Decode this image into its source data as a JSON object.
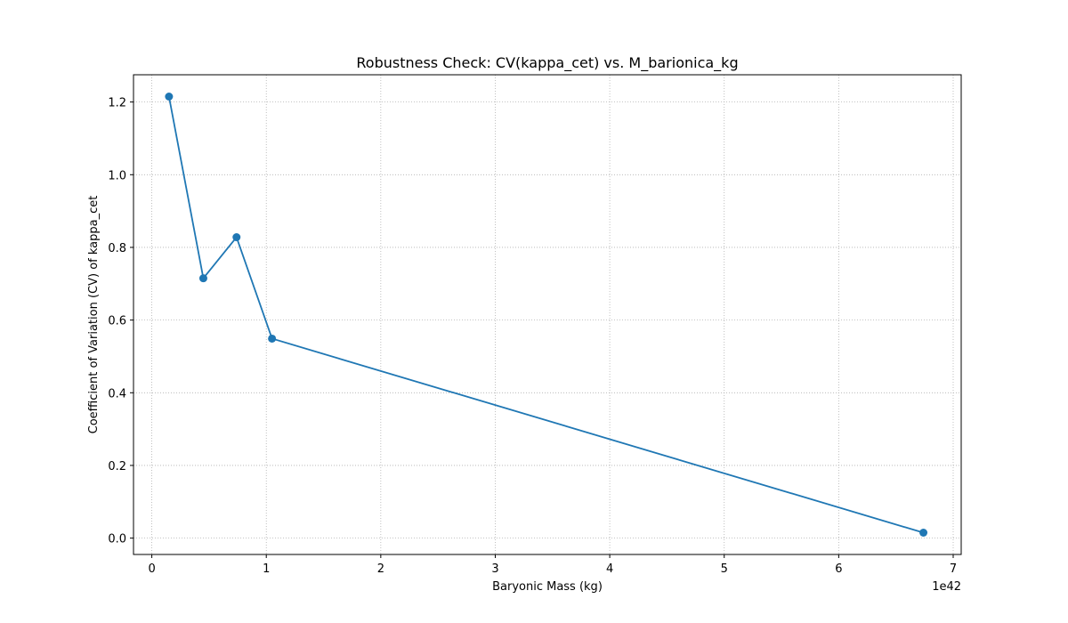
{
  "chart_data": {
    "type": "line",
    "title": "Robustness Check: CV(kappa_cet) vs. M_barionica_kg",
    "xlabel": "Baryonic Mass (kg)",
    "ylabel": "Coefficient of Variation (CV) of kappa_cet",
    "x_offset_label": "1e42",
    "xlim": [
      -0.16,
      7.07
    ],
    "ylim": [
      -0.045,
      1.275
    ],
    "xticks": [
      0,
      1,
      2,
      3,
      4,
      5,
      6,
      7
    ],
    "xtick_labels": [
      "0",
      "1",
      "2",
      "3",
      "4",
      "5",
      "6",
      "7"
    ],
    "yticks": [
      0.0,
      0.2,
      0.4,
      0.6,
      0.8,
      1.0,
      1.2
    ],
    "ytick_labels": [
      "0.0",
      "0.2",
      "0.4",
      "0.6",
      "0.8",
      "1.0",
      "1.2"
    ],
    "grid": true,
    "color": "#1f77b4",
    "series": [
      {
        "x": [
          0.15,
          0.45,
          0.74,
          1.05,
          6.74
        ],
        "y": [
          1.215,
          0.715,
          0.828,
          0.549,
          0.015
        ]
      }
    ]
  }
}
